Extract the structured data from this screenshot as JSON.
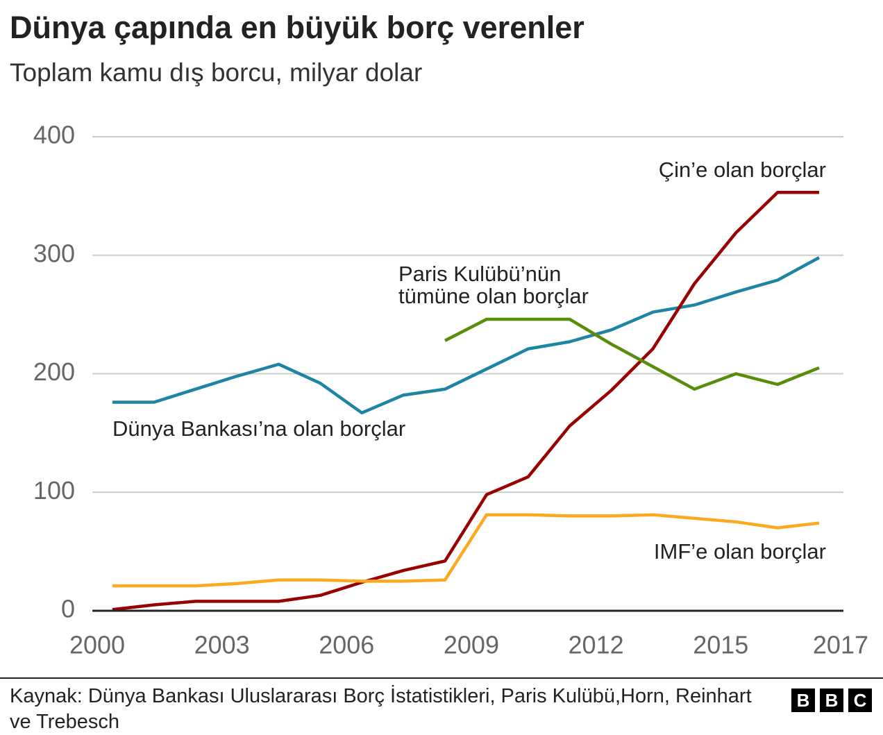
{
  "chart_data": {
    "type": "line",
    "title": "Dünya çapında en büyük borç verenler",
    "subtitle": "Toplam kamu dış borcu, milyar dolar",
    "x": [
      2000,
      2001,
      2002,
      2003,
      2004,
      2005,
      2006,
      2007,
      2008,
      2009,
      2010,
      2011,
      2012,
      2013,
      2014,
      2015,
      2016,
      2017
    ],
    "xlim": [
      2000,
      2017
    ],
    "xticks": [
      2000,
      2003,
      2006,
      2009,
      2012,
      2015,
      2017
    ],
    "ylim": [
      0,
      400
    ],
    "yticks": [
      0,
      100,
      200,
      300,
      400
    ],
    "grid": true,
    "series": [
      {
        "name": "Dünya Bankası’na olan borçlar",
        "color": "#1d84a3",
        "values": [
          176,
          176,
          187,
          198,
          208,
          192,
          167,
          182,
          187,
          204,
          221,
          227,
          237,
          252,
          258,
          269,
          279,
          298
        ]
      },
      {
        "name": "Çin’e olan borçlar",
        "color": "#990000",
        "values": [
          1,
          5,
          8,
          8,
          8,
          13,
          24,
          34,
          42,
          98,
          113,
          156,
          186,
          221,
          276,
          319,
          353,
          353
        ]
      },
      {
        "name": "IMF’e olan borçlar",
        "color": "#fba921",
        "values": [
          21,
          21,
          21,
          23,
          26,
          26,
          25,
          25,
          26,
          81,
          81,
          80,
          80,
          81,
          78,
          75,
          70,
          74
        ]
      },
      {
        "name": "Paris Kulübü’nün tümüne olan borçlar",
        "color": "#588c09",
        "values": [
          null,
          null,
          null,
          null,
          null,
          null,
          null,
          null,
          228,
          246,
          246,
          246,
          225,
          206,
          187,
          200,
          191,
          205
        ]
      }
    ],
    "source": "Kaynak: Dünya Bankası Uluslararası Borç İstatistikleri, Paris Kulübü,Horn, Reinhart ve Trebesch",
    "logo": [
      "B",
      "B",
      "C"
    ]
  }
}
